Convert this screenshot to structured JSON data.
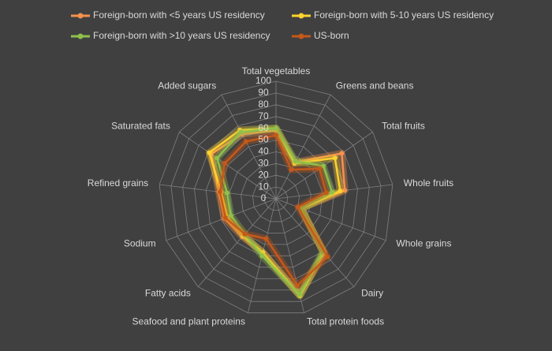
{
  "chart_data": {
    "type": "radar",
    "categories": [
      "Total vegetables",
      "Greens and beans",
      "Total fruits",
      "Whole fruits",
      "Whole grains",
      "Dairy",
      "Total protein foods",
      "Seafood and plant proteins",
      "Fatty acids",
      "Sodium",
      "Refined grains",
      "Saturated fats",
      "Added sugars"
    ],
    "series": [
      {
        "name": "Foreign-born with <5 years US residency",
        "color": "#f4914e",
        "values": [
          58,
          35,
          68,
          59,
          23,
          62,
          84,
          47,
          43,
          47,
          49,
          67,
          62
        ]
      },
      {
        "name": "Foreign-born with 5-10 years US residency",
        "color": "#ffd22e",
        "values": [
          60,
          34,
          61,
          55,
          23,
          61,
          85,
          47,
          42,
          44,
          47,
          69,
          66
        ]
      },
      {
        "name": "Foreign-born with >10 years US residency",
        "color": "#8fc14a",
        "values": [
          60,
          36,
          49,
          48,
          23,
          60,
          84,
          50,
          40,
          41,
          42,
          61,
          64
        ]
      },
      {
        "name": "US-born",
        "color": "#c5591a",
        "values": [
          54,
          28,
          45,
          43,
          20,
          66,
          76,
          35,
          40,
          46,
          48,
          53,
          55
        ]
      }
    ],
    "rlim": [
      0,
      100
    ],
    "rticks": [
      0,
      10,
      20,
      30,
      40,
      50,
      60,
      70,
      80,
      90,
      100
    ],
    "grid": true
  }
}
